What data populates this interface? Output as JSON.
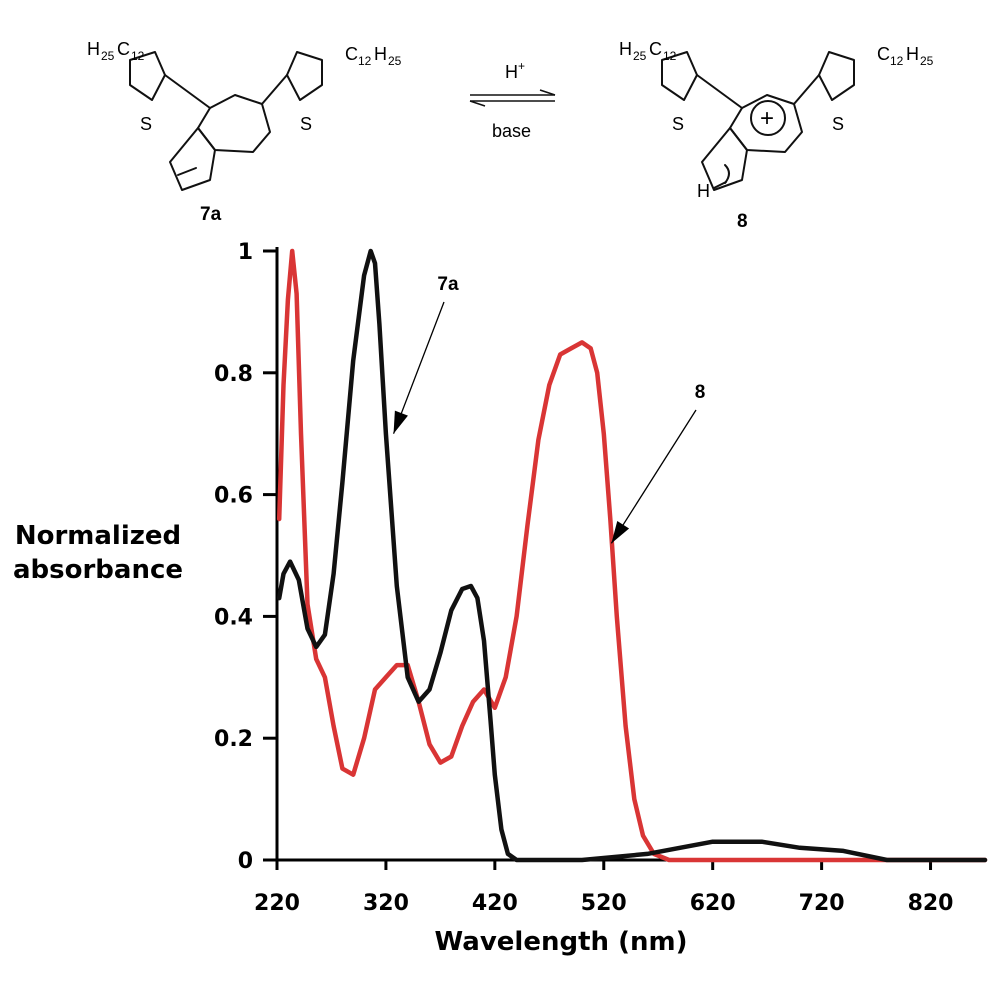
{
  "scheme": {
    "left_compound": "7a",
    "right_compound": "8",
    "reagent_forward": "H",
    "reagent_forward_sup": "+",
    "reagent_reverse": "base",
    "hydrogen_label": "H",
    "plus_sign": "+",
    "sulfur": "S",
    "subst_left_main": "H",
    "subst_left_sub1": "25",
    "subst_left_c": "C",
    "subst_left_sub2": "12",
    "subst_right_c": "C",
    "subst_right_sub1": "12",
    "subst_right_h": "H",
    "subst_right_sub2": "25"
  },
  "colors": {
    "series_7a": "#111111",
    "series_8": "#d93535",
    "axis": "#000000"
  },
  "chart_data": {
    "type": "line",
    "title": "",
    "xlabel": "Wavelength (nm)",
    "ylabel_line1": "Normalized",
    "ylabel_line2": "absorbance",
    "xlim": [
      220,
      870
    ],
    "ylim": [
      0,
      1
    ],
    "xticks": [
      "220",
      "320",
      "420",
      "520",
      "620",
      "720",
      "820"
    ],
    "yticks": [
      "0",
      "0.2",
      "0.4",
      "0.6",
      "0.8",
      "1"
    ],
    "legend": "annotations with arrows",
    "series": [
      {
        "name": "7a",
        "color": "#111111",
        "x": [
          222,
          226,
          232,
          240,
          248,
          256,
          264,
          272,
          280,
          290,
          300,
          306,
          310,
          314,
          320,
          330,
          340,
          350,
          360,
          370,
          380,
          390,
          398,
          404,
          410,
          416,
          420,
          426,
          432,
          440,
          460,
          500,
          560,
          620,
          665,
          700,
          740,
          780,
          870
        ],
        "y": [
          0.43,
          0.47,
          0.49,
          0.46,
          0.38,
          0.35,
          0.37,
          0.47,
          0.62,
          0.82,
          0.96,
          1.0,
          0.98,
          0.88,
          0.7,
          0.45,
          0.3,
          0.26,
          0.28,
          0.34,
          0.41,
          0.445,
          0.45,
          0.43,
          0.36,
          0.23,
          0.14,
          0.05,
          0.01,
          0.0,
          0.0,
          0.0,
          0.01,
          0.03,
          0.03,
          0.02,
          0.015,
          0.0,
          0.0
        ]
      },
      {
        "name": "8",
        "color": "#d93535",
        "x": [
          222,
          226,
          230,
          234,
          238,
          242,
          248,
          256,
          264,
          272,
          280,
          290,
          300,
          310,
          320,
          330,
          340,
          350,
          360,
          370,
          380,
          390,
          400,
          410,
          420,
          430,
          440,
          450,
          460,
          470,
          480,
          490,
          500,
          508,
          514,
          520,
          526,
          532,
          540,
          548,
          556,
          566,
          580,
          600,
          640,
          700,
          870
        ],
        "y": [
          0.56,
          0.78,
          0.92,
          1.0,
          0.93,
          0.7,
          0.42,
          0.33,
          0.3,
          0.22,
          0.15,
          0.14,
          0.2,
          0.28,
          0.3,
          0.32,
          0.32,
          0.26,
          0.19,
          0.16,
          0.17,
          0.22,
          0.26,
          0.28,
          0.25,
          0.3,
          0.4,
          0.55,
          0.69,
          0.78,
          0.83,
          0.84,
          0.85,
          0.84,
          0.8,
          0.7,
          0.56,
          0.4,
          0.22,
          0.1,
          0.04,
          0.01,
          0.0,
          0.0,
          0.0,
          0.0,
          0.0
        ]
      }
    ],
    "annotations": [
      {
        "text": "7a",
        "target_x": 327,
        "target_y": 0.7
      },
      {
        "text": "8",
        "target_x": 527,
        "target_y": 0.52
      }
    ]
  }
}
